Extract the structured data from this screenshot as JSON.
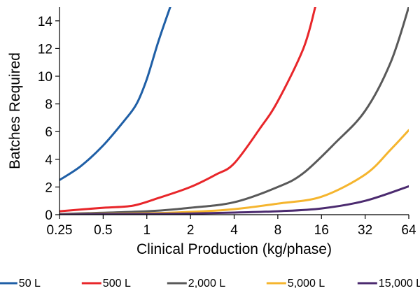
{
  "chart_data": {
    "type": "line",
    "title": "",
    "xlabel": "Clinical Production (kg/phase)",
    "ylabel": "Batches Required",
    "x_scale": "log2",
    "xlim": [
      0.25,
      64
    ],
    "ylim": [
      0,
      15
    ],
    "x_ticks": [
      0.25,
      0.5,
      1,
      2,
      4,
      8,
      16,
      32,
      64
    ],
    "x_tick_labels": [
      "0.25",
      "0.5",
      "1",
      "2",
      "4",
      "8",
      "16",
      "32",
      "64"
    ],
    "y_ticks": [
      0,
      2,
      4,
      6,
      8,
      10,
      12,
      14
    ],
    "y_tick_labels": [
      "0",
      "2",
      "4",
      "6",
      "8",
      "10",
      "12",
      "14"
    ],
    "grid": false,
    "legend_position": "bottom",
    "series": [
      {
        "name": "50 L",
        "color": "#1f5fa6",
        "x": [
          0.25,
          0.35,
          0.5,
          0.7,
          0.85,
          1,
          1.2,
          1.45
        ],
        "y": [
          2.5,
          3.5,
          5.0,
          6.8,
          8.0,
          9.8,
          12.5,
          15.0
        ]
      },
      {
        "name": "500 L",
        "color": "#e8262a",
        "x": [
          0.25,
          0.5,
          0.8,
          1.2,
          2,
          3,
          4,
          6,
          8,
          12,
          14.5
        ],
        "y": [
          0.25,
          0.5,
          0.65,
          1.2,
          2.0,
          2.9,
          3.7,
          6.2,
          8.2,
          12.0,
          15.0
        ]
      },
      {
        "name": "2,000 L",
        "color": "#595959",
        "x": [
          0.25,
          1,
          2,
          4,
          8,
          12,
          20,
          32,
          48,
          64
        ],
        "y": [
          0.05,
          0.25,
          0.5,
          0.9,
          2.0,
          3.0,
          5.2,
          7.5,
          11.0,
          15.0
        ]
      },
      {
        "name": "5,000 L",
        "color": "#f5b52e",
        "x": [
          0.25,
          1,
          2,
          4,
          8,
          16,
          32,
          48,
          64
        ],
        "y": [
          0.02,
          0.1,
          0.2,
          0.4,
          0.8,
          1.3,
          2.9,
          4.7,
          6.1
        ]
      },
      {
        "name": "15,000 L",
        "color": "#4b2a6f",
        "x": [
          0.25,
          1,
          2,
          4,
          8,
          16,
          32,
          64
        ],
        "y": [
          0.01,
          0.05,
          0.08,
          0.15,
          0.25,
          0.45,
          1.0,
          2.05
        ]
      }
    ]
  }
}
